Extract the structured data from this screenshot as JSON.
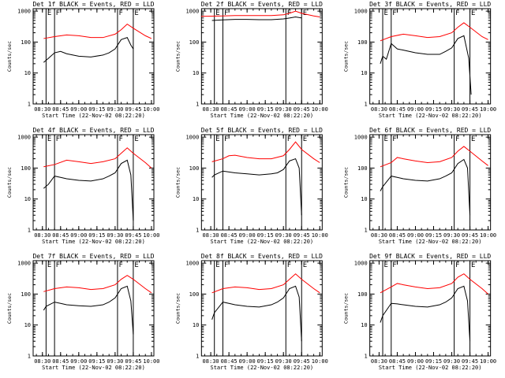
{
  "page": {
    "background": "#ffffff",
    "colors": {
      "events": "#000000",
      "lld": "#ff0000",
      "axis": "#000000"
    }
  },
  "chart_data": [
    {
      "type": "line",
      "title": "Det 1f BLACK = Events, RED = LLD",
      "xlabel": "Start Time (22-Nov-02 08:22:20)",
      "ylabel": "Counts/sec",
      "x_ticks": [
        "08:30",
        "08:45",
        "09:00",
        "09:15",
        "09:30",
        "09:45",
        "10:00"
      ],
      "y_ticks": [
        "1",
        "10",
        "100",
        "1000"
      ],
      "yscale": "log",
      "ylim": [
        1,
        1200
      ],
      "region_lines": [
        "08:33",
        "08:40",
        "09:32",
        "09:45"
      ],
      "region_labels": [
        "E",
        "F",
        "F",
        "E"
      ],
      "series": [
        {
          "name": "Events",
          "color": "#000000",
          "time": [
            "08:31",
            "08:35",
            "08:40",
            "08:45",
            "08:50",
            "09:00",
            "09:10",
            "09:20",
            "09:25",
            "09:30",
            "09:35",
            "09:40",
            "09:43",
            "09:45"
          ],
          "values": [
            22,
            30,
            45,
            50,
            42,
            35,
            33,
            38,
            45,
            60,
            120,
            140,
            80,
            60
          ]
        },
        {
          "name": "LLD",
          "color": "#ff0000",
          "time": [
            "08:31",
            "08:40",
            "08:50",
            "09:00",
            "09:10",
            "09:20",
            "09:30",
            "09:35",
            "09:40",
            "09:45",
            "09:55",
            "10:00"
          ],
          "values": [
            130,
            150,
            170,
            160,
            140,
            140,
            180,
            250,
            380,
            280,
            160,
            130
          ]
        }
      ]
    },
    {
      "type": "line",
      "title": "Det 2f BLACK = Events, RED = LLD",
      "xlabel": "Start Time (22-Nov-02 08:22:20)",
      "ylabel": "Counts/sec",
      "x_ticks": [
        "08:30",
        "08:45",
        "09:00",
        "09:15",
        "09:30",
        "09:45",
        "10:00"
      ],
      "y_ticks": [
        "1",
        "10",
        "100",
        "1000"
      ],
      "yscale": "log",
      "ylim": [
        1,
        1200
      ],
      "region_lines": [
        "08:33",
        "08:40",
        "09:32",
        "09:45"
      ],
      "region_labels": [
        "E",
        "F",
        "F",
        "E"
      ],
      "series": [
        {
          "name": "Events",
          "color": "#000000",
          "time": [
            "08:31",
            "08:40",
            "08:50",
            "09:00",
            "09:10",
            "09:20",
            "09:30",
            "09:35",
            "09:40",
            "09:45"
          ],
          "values": [
            500,
            520,
            540,
            540,
            530,
            530,
            560,
            600,
            650,
            600
          ]
        },
        {
          "name": "LLD",
          "color": "#ff0000",
          "time": [
            "08:22",
            "08:40",
            "08:50",
            "09:00",
            "09:10",
            "09:20",
            "09:30",
            "09:35",
            "09:40",
            "09:45",
            "09:55",
            "10:00"
          ],
          "values": [
            680,
            700,
            720,
            720,
            720,
            720,
            760,
            850,
            1000,
            850,
            700,
            650
          ]
        }
      ]
    },
    {
      "type": "line",
      "title": "Det 3f BLACK = Events, RED = LLD",
      "xlabel": "Start Time (22-Nov-02 08:22:20)",
      "ylabel": "Counts/sec",
      "x_ticks": [
        "08:30",
        "08:45",
        "09:00",
        "09:15",
        "09:30",
        "09:45",
        "10:00"
      ],
      "y_ticks": [
        "1",
        "10",
        "100",
        "1000"
      ],
      "yscale": "log",
      "ylim": [
        1,
        1200
      ],
      "region_lines": [
        "08:33",
        "08:40",
        "09:32",
        "09:45"
      ],
      "region_labels": [
        "E",
        "F",
        "F",
        "E"
      ],
      "series": [
        {
          "name": "Events",
          "color": "#000000",
          "time": [
            "08:31",
            "08:33",
            "08:36",
            "08:40",
            "08:45",
            "08:50",
            "09:00",
            "09:10",
            "09:20",
            "09:25",
            "09:30",
            "09:35",
            "09:40",
            "09:44",
            "09:46"
          ],
          "values": [
            20,
            35,
            28,
            90,
            60,
            55,
            45,
            40,
            40,
            50,
            65,
            130,
            160,
            30,
            2
          ]
        },
        {
          "name": "LLD",
          "color": "#ff0000",
          "time": [
            "08:31",
            "08:40",
            "08:50",
            "09:00",
            "09:10",
            "09:20",
            "09:30",
            "09:35",
            "09:40",
            "09:45",
            "09:55",
            "10:00"
          ],
          "values": [
            110,
            150,
            180,
            160,
            140,
            150,
            200,
            300,
            420,
            300,
            150,
            120
          ]
        }
      ]
    },
    {
      "type": "line",
      "title": "Det 4f BLACK = Events, RED = LLD",
      "xlabel": "Start Time (22-Nov-02 08:22:20)",
      "ylabel": "Counts/sec",
      "x_ticks": [
        "08:30",
        "08:45",
        "09:00",
        "09:15",
        "09:30",
        "09:45",
        "10:00"
      ],
      "y_ticks": [
        "1",
        "10",
        "100",
        "1000"
      ],
      "yscale": "log",
      "ylim": [
        1,
        1200
      ],
      "region_lines": [
        "08:33",
        "08:40",
        "09:32",
        "09:45"
      ],
      "region_labels": [
        "E",
        "F",
        "F",
        "E"
      ],
      "series": [
        {
          "name": "Events",
          "color": "#000000",
          "time": [
            "08:31",
            "08:35",
            "08:40",
            "08:45",
            "08:50",
            "09:00",
            "09:10",
            "09:20",
            "09:25",
            "09:30",
            "09:35",
            "09:40",
            "09:43",
            "09:45"
          ],
          "values": [
            22,
            30,
            55,
            50,
            45,
            40,
            38,
            45,
            55,
            70,
            140,
            180,
            60,
            2
          ]
        },
        {
          "name": "LLD",
          "color": "#ff0000",
          "time": [
            "08:31",
            "08:40",
            "08:50",
            "09:00",
            "09:10",
            "09:20",
            "09:30",
            "09:35",
            "09:40",
            "09:45",
            "09:55",
            "10:00"
          ],
          "values": [
            110,
            130,
            180,
            160,
            140,
            160,
            200,
            300,
            450,
            300,
            150,
            100
          ]
        }
      ]
    },
    {
      "type": "line",
      "title": "Det 5f BLACK = Events, RED = LLD",
      "xlabel": "Start Time (22-Nov-02 08:22:20)",
      "ylabel": "Counts/sec",
      "x_ticks": [
        "08:30",
        "08:45",
        "09:00",
        "09:15",
        "09:30",
        "09:45",
        "10:00"
      ],
      "y_ticks": [
        "1",
        "10",
        "100",
        "1000"
      ],
      "yscale": "log",
      "ylim": [
        1,
        1200
      ],
      "region_lines": [
        "08:33",
        "08:40",
        "09:32",
        "09:45"
      ],
      "region_labels": [
        "E",
        "F",
        "F",
        "E"
      ],
      "series": [
        {
          "name": "Events",
          "color": "#000000",
          "time": [
            "08:31",
            "08:33",
            "08:40",
            "08:45",
            "08:50",
            "09:00",
            "09:10",
            "09:20",
            "09:25",
            "09:30",
            "09:35",
            "09:40",
            "09:43",
            "09:45"
          ],
          "values": [
            50,
            60,
            80,
            75,
            70,
            65,
            60,
            65,
            70,
            90,
            170,
            200,
            100,
            3
          ]
        },
        {
          "name": "LLD",
          "color": "#ff0000",
          "time": [
            "08:31",
            "08:40",
            "08:45",
            "08:50",
            "09:00",
            "09:10",
            "09:20",
            "09:30",
            "09:35",
            "09:40",
            "09:45",
            "09:55",
            "10:00"
          ],
          "values": [
            160,
            200,
            250,
            260,
            220,
            200,
            200,
            250,
            400,
            700,
            400,
            200,
            150
          ]
        }
      ]
    },
    {
      "type": "line",
      "title": "Det 6f BLACK = Events, RED = LLD",
      "xlabel": "Start Time (22-Nov-02 08:22:20)",
      "ylabel": "Counts/sec",
      "x_ticks": [
        "08:30",
        "08:45",
        "09:00",
        "09:15",
        "09:30",
        "09:45",
        "10:00"
      ],
      "y_ticks": [
        "1",
        "10",
        "100",
        "1000"
      ],
      "yscale": "log",
      "ylim": [
        1,
        1200
      ],
      "region_lines": [
        "08:33",
        "08:40",
        "09:32",
        "09:45"
      ],
      "region_labels": [
        "E",
        "F",
        "F",
        "E"
      ],
      "series": [
        {
          "name": "Events",
          "color": "#000000",
          "time": [
            "08:31",
            "08:33",
            "08:40",
            "08:45",
            "08:50",
            "09:00",
            "09:10",
            "09:20",
            "09:25",
            "09:30",
            "09:35",
            "09:40",
            "09:43",
            "09:45"
          ],
          "values": [
            18,
            25,
            55,
            50,
            45,
            40,
            38,
            45,
            55,
            70,
            140,
            190,
            100,
            3
          ]
        },
        {
          "name": "LLD",
          "color": "#ff0000",
          "time": [
            "08:31",
            "08:40",
            "08:45",
            "08:50",
            "09:00",
            "09:10",
            "09:20",
            "09:30",
            "09:35",
            "09:40",
            "09:45",
            "09:55",
            "10:00"
          ],
          "values": [
            110,
            150,
            220,
            200,
            170,
            150,
            160,
            220,
            350,
            500,
            350,
            170,
            120
          ]
        }
      ]
    },
    {
      "type": "line",
      "title": "Det 7f BLACK = Events, RED = LLD",
      "xlabel": "Start Time (22-Nov-02 08:22:20)",
      "ylabel": "Counts/sec",
      "x_ticks": [
        "08:30",
        "08:45",
        "09:00",
        "09:15",
        "09:30",
        "09:45",
        "10:00"
      ],
      "y_ticks": [
        "1",
        "10",
        "100",
        "1000"
      ],
      "yscale": "log",
      "ylim": [
        1,
        1200
      ],
      "region_lines": [
        "08:33",
        "08:40",
        "09:32",
        "09:45"
      ],
      "region_labels": [
        "E",
        "F",
        "F",
        "E"
      ],
      "series": [
        {
          "name": "Events",
          "color": "#000000",
          "time": [
            "08:31",
            "08:33",
            "08:40",
            "08:45",
            "08:50",
            "09:00",
            "09:10",
            "09:20",
            "09:25",
            "09:30",
            "09:35",
            "09:40",
            "09:43",
            "09:45"
          ],
          "values": [
            30,
            40,
            55,
            50,
            45,
            42,
            40,
            45,
            55,
            75,
            150,
            180,
            60,
            5
          ]
        },
        {
          "name": "LLD",
          "color": "#ff0000",
          "time": [
            "08:31",
            "08:40",
            "08:50",
            "09:00",
            "09:10",
            "09:20",
            "09:30",
            "09:35",
            "09:40",
            "09:45",
            "09:55",
            "10:00"
          ],
          "values": [
            120,
            150,
            170,
            160,
            140,
            150,
            200,
            300,
            400,
            300,
            150,
            110
          ]
        }
      ]
    },
    {
      "type": "line",
      "title": "Det 8f BLACK = Events, RED = LLD",
      "xlabel": "Start Time (22-Nov-02 08:22:20)",
      "ylabel": "Counts/sec",
      "x_ticks": [
        "08:30",
        "08:45",
        "09:00",
        "09:15",
        "09:30",
        "09:45",
        "10:00"
      ],
      "y_ticks": [
        "1",
        "10",
        "100",
        "1000"
      ],
      "yscale": "log",
      "ylim": [
        1,
        1200
      ],
      "region_lines": [
        "08:33",
        "08:40",
        "09:32",
        "09:45"
      ],
      "region_labels": [
        "E",
        "F",
        "F",
        "E"
      ],
      "series": [
        {
          "name": "Events",
          "color": "#000000",
          "time": [
            "08:31",
            "08:33",
            "08:40",
            "08:45",
            "08:50",
            "09:00",
            "09:10",
            "09:20",
            "09:25",
            "09:30",
            "09:35",
            "09:40",
            "09:43",
            "09:45"
          ],
          "values": [
            15,
            25,
            55,
            50,
            45,
            40,
            38,
            45,
            55,
            75,
            150,
            180,
            80,
            3
          ]
        },
        {
          "name": "LLD",
          "color": "#ff0000",
          "time": [
            "08:31",
            "08:40",
            "08:50",
            "09:00",
            "09:10",
            "09:20",
            "09:30",
            "09:35",
            "09:40",
            "09:45",
            "09:55",
            "10:00"
          ],
          "values": [
            110,
            150,
            170,
            160,
            140,
            150,
            200,
            300,
            450,
            300,
            150,
            110
          ]
        }
      ]
    },
    {
      "type": "line",
      "title": "Det 9f BLACK = Events, RED = LLD",
      "xlabel": "Start Time (22-Nov-02 08:22:20)",
      "ylabel": "Counts/sec",
      "x_ticks": [
        "08:30",
        "08:45",
        "09:00",
        "09:15",
        "09:30",
        "09:45",
        "10:00"
      ],
      "y_ticks": [
        "1",
        "10",
        "100",
        "1000"
      ],
      "yscale": "log",
      "ylim": [
        1,
        1200
      ],
      "region_lines": [
        "08:33",
        "08:40",
        "09:32",
        "09:45"
      ],
      "region_labels": [
        "E",
        "F",
        "F",
        "E"
      ],
      "series": [
        {
          "name": "Events",
          "color": "#000000",
          "time": [
            "08:31",
            "08:33",
            "08:40",
            "08:45",
            "08:50",
            "09:00",
            "09:10",
            "09:20",
            "09:25",
            "09:30",
            "09:35",
            "09:40",
            "09:43",
            "09:45"
          ],
          "values": [
            12,
            20,
            50,
            48,
            45,
            40,
            38,
            45,
            55,
            75,
            150,
            180,
            60,
            3
          ]
        },
        {
          "name": "LLD",
          "color": "#ff0000",
          "time": [
            "08:31",
            "08:40",
            "08:45",
            "08:50",
            "09:00",
            "09:10",
            "09:20",
            "09:30",
            "09:35",
            "09:40",
            "09:45",
            "09:55",
            "10:00"
          ],
          "values": [
            110,
            170,
            220,
            200,
            170,
            150,
            160,
            220,
            350,
            450,
            300,
            150,
            100
          ]
        }
      ]
    }
  ]
}
